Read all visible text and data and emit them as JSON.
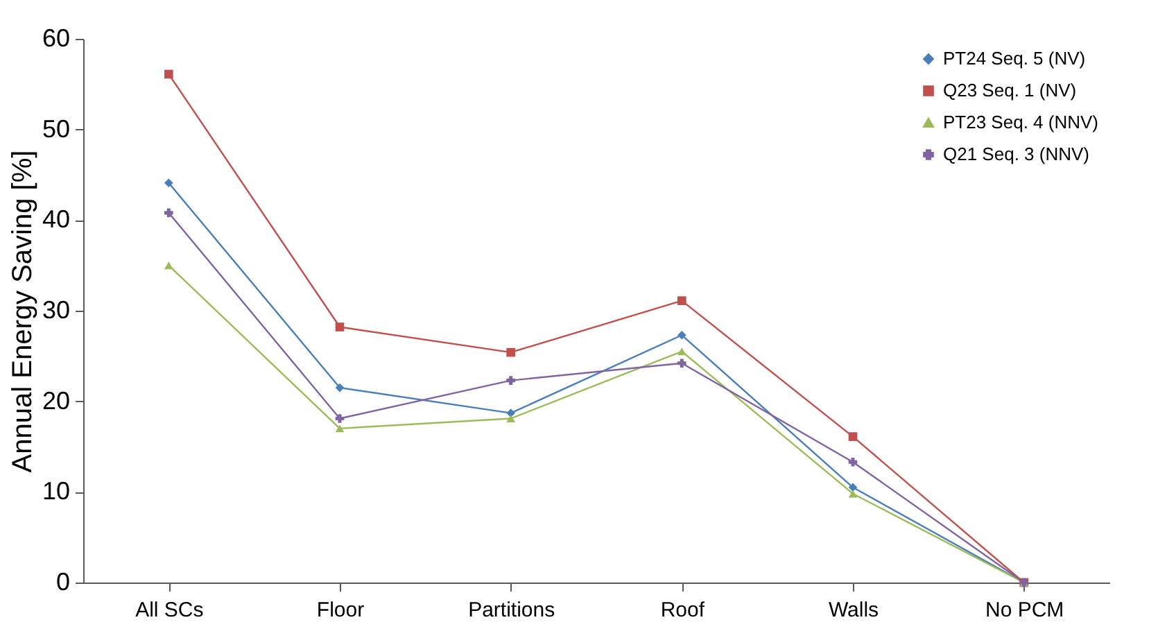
{
  "chart_data": {
    "type": "line",
    "ylabel": "Annual Energy Saving [%]",
    "categories": [
      "All SCs",
      "Floor",
      "Partitions",
      "Roof",
      "Walls",
      "No PCM"
    ],
    "ylim": [
      0,
      60
    ],
    "yticks": [
      0,
      10,
      20,
      30,
      40,
      50,
      60
    ],
    "grid": false,
    "legend": "top right",
    "series": [
      {
        "name": "PT24 Seq. 5 (NV)",
        "color": "#4a7ebb",
        "marker": "diamond",
        "values": [
          44.1,
          21.5,
          18.7,
          27.3,
          10.5,
          0
        ]
      },
      {
        "name": "Q23 Seq. 1 (NV)",
        "color": "#c0504d",
        "marker": "square",
        "values": [
          56.1,
          28.2,
          25.4,
          31.1,
          16.1,
          0
        ]
      },
      {
        "name": "PT23 Seq. 4 (NNV)",
        "color": "#9bbb59",
        "marker": "triangle",
        "values": [
          35.0,
          17.0,
          18.1,
          25.5,
          9.8,
          0
        ]
      },
      {
        "name": "Q21 Seq. 3 (NNV)",
        "color": "#8064a2",
        "marker": "cross",
        "values": [
          40.8,
          18.1,
          22.3,
          24.2,
          13.3,
          0
        ]
      }
    ]
  }
}
